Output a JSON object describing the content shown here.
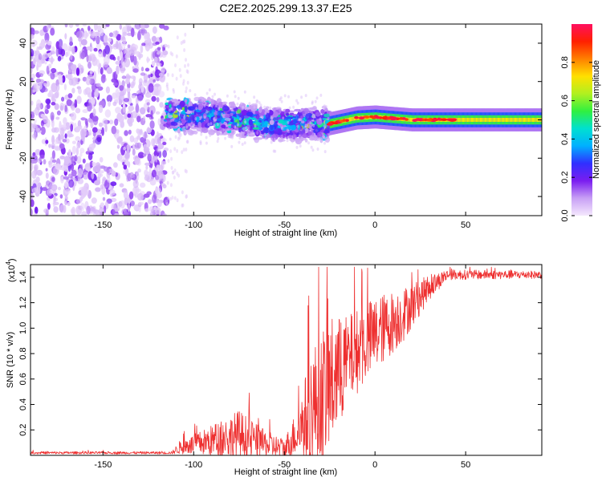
{
  "page_title": "C2E2.2025.299.13.37.E25",
  "chart_data": [
    {
      "type": "heatmap",
      "title": "C2E2.2025.299.13.37.E25",
      "xlabel": "Height of straight line (km)",
      "ylabel": "Frequency (Hz)",
      "xlim": [
        -190,
        92
      ],
      "ylim": [
        -50,
        50
      ],
      "x_ticks": [
        -150,
        -100,
        -50,
        0,
        50
      ],
      "x_tick_labels": [
        "-150",
        "-100",
        "-50",
        "0",
        "50"
      ],
      "y_ticks": [
        -40,
        -20,
        0,
        20,
        40
      ],
      "y_tick_labels": [
        "-40",
        "-20",
        "0",
        "20",
        "40"
      ],
      "colorbar": {
        "label": "Normalized spectral amplitude",
        "range": [
          0,
          1
        ],
        "ticks": [
          0.0,
          0.2,
          0.4,
          0.6,
          0.8
        ],
        "tick_labels": [
          "0.0",
          "0.2",
          "0.4",
          "0.6",
          "0.8"
        ],
        "colors": [
          "#f4e8fd",
          "#c8a0f5",
          "#7a1df0",
          "#3030ff",
          "#00b0ff",
          "#00e0d0",
          "#30f040",
          "#b0f020",
          "#ffe000",
          "#ff8000",
          "#ff2000",
          "#ff1060"
        ]
      },
      "regions": [
        {
          "name": "noise",
          "x_range": [
            -190,
            -115
          ],
          "freq_range": [
            -50,
            50
          ],
          "amplitude": 0.08
        },
        {
          "name": "transition",
          "x_range": [
            -115,
            -25
          ],
          "center_freq": [
            [
              -115,
              3
            ],
            [
              -90,
              2
            ],
            [
              -60,
              -2
            ],
            [
              -40,
              -2
            ],
            [
              -25,
              -2
            ]
          ],
          "bandwidth_hz": 8,
          "amplitude": 0.35
        },
        {
          "name": "signal",
          "x_range": [
            -25,
            92
          ],
          "center_freq": [
            [
              -25,
              -2
            ],
            [
              -10,
              1
            ],
            [
              0,
              1.5
            ],
            [
              20,
              0
            ],
            [
              92,
              0
            ]
          ],
          "bandwidth_hz": 3,
          "amplitude": 0.95
        }
      ]
    },
    {
      "type": "line",
      "xlabel": "Height of straight line (km)",
      "ylabel": "SNR (10 * v/v)",
      "y_scale_label": "(x10",
      "y_scale_exponent": "4",
      "xlim": [
        -190,
        92
      ],
      "ylim": [
        0,
        1.5
      ],
      "x_ticks": [
        -150,
        -100,
        -50,
        0,
        50
      ],
      "x_tick_labels": [
        "-150",
        "-100",
        "-50",
        "0",
        "50"
      ],
      "y_ticks": [
        0.2,
        0.4,
        0.6,
        0.8,
        1.0,
        1.2,
        1.4
      ],
      "y_tick_labels": [
        "0.2",
        "0.4",
        "0.6",
        "0.8",
        "1.0",
        "1.2",
        "1.4"
      ],
      "color": "#ee3030",
      "envelope": [
        {
          "x": -190,
          "base": 0.02,
          "noise": 0.01
        },
        {
          "x": -112,
          "base": 0.02,
          "noise": 0.01
        },
        {
          "x": -108,
          "base": 0.06,
          "noise": 0.05
        },
        {
          "x": -95,
          "base": 0.1,
          "noise": 0.1
        },
        {
          "x": -75,
          "base": 0.16,
          "noise": 0.2
        },
        {
          "x": -62,
          "base": 0.09,
          "noise": 0.12
        },
        {
          "x": -50,
          "base": 0.05,
          "noise": 0.08
        },
        {
          "x": -42,
          "base": 0.2,
          "noise": 0.2
        },
        {
          "x": -35,
          "base": 0.35,
          "noise": 0.5
        },
        {
          "x": -25,
          "base": 0.55,
          "noise": 0.55
        },
        {
          "x": -15,
          "base": 0.75,
          "noise": 0.35
        },
        {
          "x": 0,
          "base": 0.95,
          "noise": 0.3
        },
        {
          "x": 15,
          "base": 1.1,
          "noise": 0.22
        },
        {
          "x": 30,
          "base": 1.32,
          "noise": 0.1
        },
        {
          "x": 40,
          "base": 1.42,
          "noise": 0.04
        },
        {
          "x": 92,
          "base": 1.42,
          "noise": 0.03
        }
      ]
    }
  ]
}
